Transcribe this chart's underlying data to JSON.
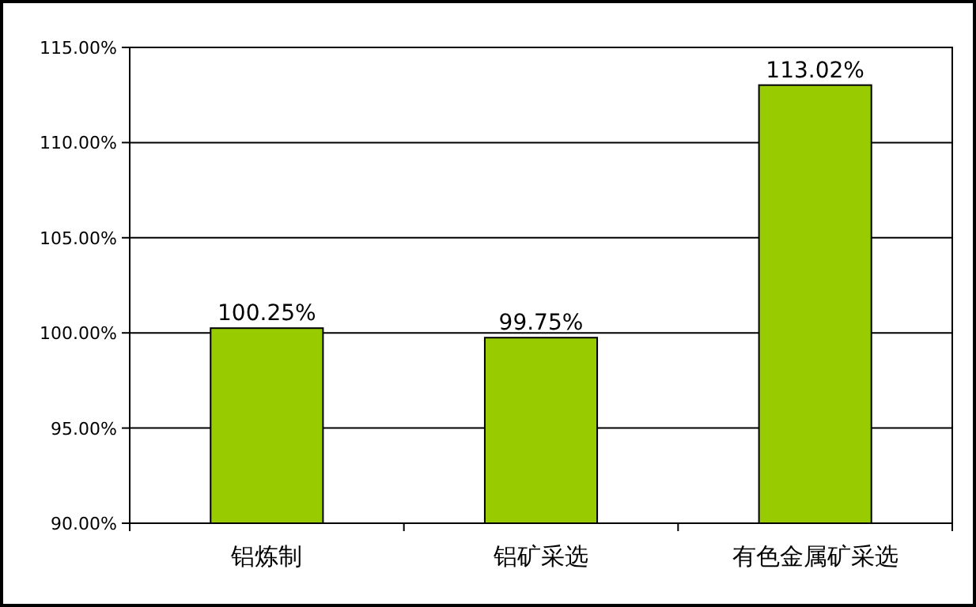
{
  "chart_data": {
    "type": "bar",
    "categories": [
      "铝炼制",
      "铝矿采选",
      "有色金属矿采选"
    ],
    "values": [
      100.25,
      99.75,
      113.02
    ],
    "value_labels": [
      "100.25%",
      "99.75%",
      "113.02%"
    ],
    "color": "#99cc00",
    "ylim": [
      90,
      115
    ],
    "yticks": [
      {
        "value": 90,
        "label": "90.00%"
      },
      {
        "value": 95,
        "label": "95.00%"
      },
      {
        "value": 100,
        "label": "100.00%"
      },
      {
        "value": 105,
        "label": "105.00%"
      },
      {
        "value": 110,
        "label": "110.00%"
      },
      {
        "value": 115,
        "label": "115.00%"
      }
    ],
    "grid": "y"
  }
}
